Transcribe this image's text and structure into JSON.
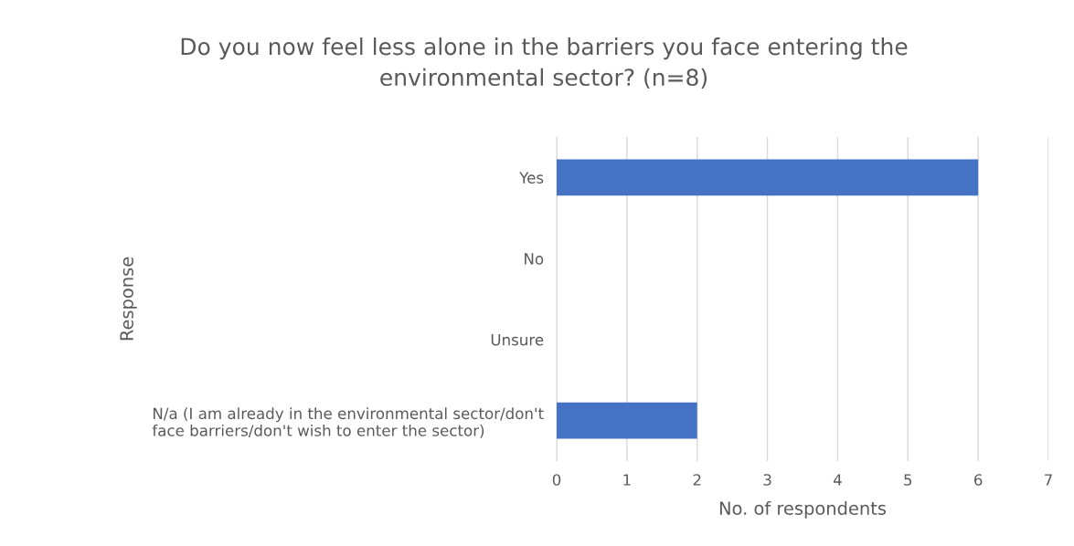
{
  "chart_data": {
    "type": "bar",
    "orientation": "horizontal",
    "title": "Do you now feel less alone in the barriers you face entering the\nenvironmental sector? (n=8)",
    "xlabel": "No. of respondents",
    "ylabel": "Response",
    "categories": [
      "Yes",
      "No",
      "Unsure",
      "N/a (I am already in the environmental sector/don't\nface barriers/don't wish to enter the sector)"
    ],
    "values": [
      6,
      0,
      0,
      2
    ],
    "color": "#4472c4",
    "xlim": [
      0,
      7
    ],
    "xticks": [
      0,
      1,
      2,
      3,
      4,
      5,
      6,
      7
    ],
    "grid": "x",
    "legend": false
  }
}
